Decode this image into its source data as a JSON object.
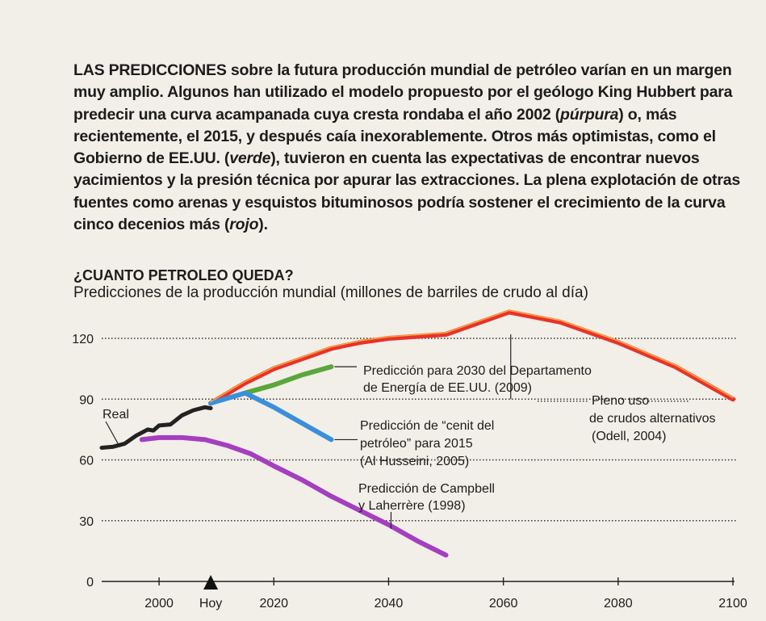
{
  "intro": {
    "lead": "LAS PREDICCIONES",
    "p1": " sobre la futura producción mundial de petróleo varían en un margen muy amplio. Algunos han utilizado el modelo propuesto por el geólogo King Hubbert para predecir una curva acampanada cuya cresta rondaba el año 2002 (",
    "purple": "púrpura",
    "p2": ") o, más recientemente, el 2015, y después caía inexorablemente. Otros más optimistas, como el Gobierno de EE.UU. (",
    "green": "verde",
    "p3": "), tuvieron en cuenta las expectativas de encontrar nuevos yacimientos y la presión técnica por apurar las extracciones. La plena explotación de otras fuentes como arenas y esquistos bituminosos podría sostener el crecimiento de la curva cinco decenios más (",
    "red": "rojo",
    "p4": ")."
  },
  "chart_data": {
    "type": "line",
    "title": "¿CUANTO PETROLEO QUEDA?",
    "subtitle": "Predicciones de la producción mundial (millones de barriles de crudo al día)",
    "xlabel": "",
    "ylabel": "",
    "xlim": [
      1990,
      2100
    ],
    "ylim": [
      0,
      130
    ],
    "y_ticks": [
      0,
      30,
      60,
      90,
      120
    ],
    "x_ticks": [
      {
        "value": 2000,
        "label": "2000"
      },
      {
        "value": 2009,
        "label": "Hoy",
        "marker": true
      },
      {
        "value": 2020,
        "label": "2020"
      },
      {
        "value": 2040,
        "label": "2040"
      },
      {
        "value": 2060,
        "label": "2060"
      },
      {
        "value": 2080,
        "label": "2080"
      },
      {
        "value": 2100,
        "label": "2100"
      }
    ],
    "grid": "horizontal-dotted",
    "series": [
      {
        "name": "Real",
        "color": "#222222",
        "points": [
          [
            1990,
            66
          ],
          [
            1992,
            66.5
          ],
          [
            1994,
            68
          ],
          [
            1996,
            72
          ],
          [
            1998,
            75
          ],
          [
            1999,
            74.5
          ],
          [
            2000,
            77
          ],
          [
            2002,
            77.5
          ],
          [
            2004,
            82
          ],
          [
            2006,
            84.5
          ],
          [
            2008,
            86
          ],
          [
            2009,
            85.5
          ]
        ]
      },
      {
        "name": "Pleno uso de crudos alternativos (Odell, 2004)",
        "color": "#e8322a",
        "points": [
          [
            2009,
            88
          ],
          [
            2015,
            98
          ],
          [
            2020,
            105
          ],
          [
            2025,
            110
          ],
          [
            2030,
            115
          ],
          [
            2035,
            118
          ],
          [
            2040,
            120
          ],
          [
            2050,
            122
          ],
          [
            2061,
            133
          ],
          [
            2070,
            128
          ],
          [
            2080,
            118
          ],
          [
            2090,
            106
          ],
          [
            2100,
            90
          ]
        ]
      },
      {
        "name": "Predicción para 2030 del Departamento de Energía de EE.UU. (2009)",
        "color": "#5aa63a",
        "points": [
          [
            2015,
            93
          ],
          [
            2020,
            97
          ],
          [
            2025,
            102
          ],
          [
            2030,
            106
          ]
        ]
      },
      {
        "name": "Predicción de \"cenit del petróleo\" para 2015 (Al Husseini, 2005)",
        "color": "#3a8fdc",
        "points": [
          [
            2009,
            88
          ],
          [
            2015,
            93
          ],
          [
            2020,
            86
          ],
          [
            2025,
            78
          ],
          [
            2030,
            70
          ]
        ]
      },
      {
        "name": "Predicción de Campbell y Laherrère (1998)",
        "color": "#a43fbf",
        "points": [
          [
            1997,
            70
          ],
          [
            2000,
            71
          ],
          [
            2004,
            71
          ],
          [
            2008,
            70
          ],
          [
            2012,
            67
          ],
          [
            2016,
            63
          ],
          [
            2020,
            57
          ],
          [
            2025,
            50
          ],
          [
            2030,
            42
          ],
          [
            2035,
            35
          ],
          [
            2040,
            28
          ],
          [
            2045,
            20
          ],
          [
            2050,
            13
          ]
        ]
      }
    ],
    "annotations": {
      "real": "Real",
      "doe_1": "Predicción para 2030 del Departamento",
      "doe_2": "de Energía de EE.UU. (2009)",
      "odell_1": "Pleno uso",
      "odell_2": "de crudos alternativos",
      "odell_3": "(Odell, 2004)",
      "husseini_1": "Predicción de “cenit del",
      "husseini_2": "petróleo” para 2015",
      "husseini_3": "(Al Husseini, 2005)",
      "campbell_1": "Predicción de Campbell",
      "campbell_2": "y Laherrère (1998)"
    }
  }
}
